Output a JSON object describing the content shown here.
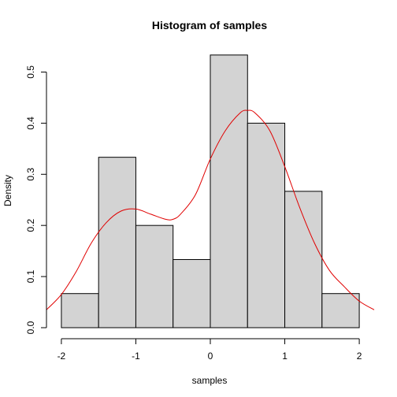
{
  "chart_data": {
    "type": "bar",
    "title": "Histogram of samples",
    "xlabel": "samples",
    "ylabel": "Density",
    "bins": [
      {
        "start": -2.0,
        "end": -1.5,
        "density": 0.0667
      },
      {
        "start": -1.5,
        "end": -1.0,
        "density": 0.3333
      },
      {
        "start": -1.0,
        "end": -0.5,
        "density": 0.2
      },
      {
        "start": -0.5,
        "end": 0.0,
        "density": 0.1333
      },
      {
        "start": 0.0,
        "end": 0.5,
        "density": 0.5333
      },
      {
        "start": 0.5,
        "end": 1.0,
        "density": 0.4
      },
      {
        "start": 1.0,
        "end": 1.5,
        "density": 0.2667
      },
      {
        "start": 1.5,
        "end": 2.0,
        "density": 0.0667
      }
    ],
    "density_curve": {
      "color": "#e00000",
      "x": [
        -2.2,
        -2.0,
        -1.8,
        -1.6,
        -1.4,
        -1.2,
        -1.0,
        -0.8,
        -0.6,
        -0.5,
        -0.4,
        -0.2,
        0.0,
        0.2,
        0.4,
        0.5,
        0.6,
        0.8,
        1.0,
        1.2,
        1.4,
        1.6,
        1.8,
        2.0,
        2.2
      ],
      "y": [
        0.035,
        0.065,
        0.11,
        0.165,
        0.205,
        0.228,
        0.232,
        0.222,
        0.212,
        0.212,
        0.222,
        0.26,
        0.33,
        0.385,
        0.42,
        0.425,
        0.42,
        0.385,
        0.315,
        0.235,
        0.165,
        0.112,
        0.08,
        0.052,
        0.035
      ]
    },
    "xlim": [
      -2.2,
      2.2
    ],
    "ylim": [
      0,
      0.55
    ],
    "xticks": [
      -2,
      -1,
      0,
      1,
      2
    ],
    "xtick_labels": [
      "-2",
      "-1",
      "0",
      "1",
      "2"
    ],
    "yticks": [
      0.0,
      0.1,
      0.2,
      0.3,
      0.4,
      0.5
    ],
    "ytick_labels": [
      "0.0",
      "0.1",
      "0.2",
      "0.3",
      "0.4",
      "0.5"
    ],
    "colors": {
      "bar_fill": "#d3d3d3",
      "bar_stroke": "#000000"
    },
    "grid": false
  }
}
